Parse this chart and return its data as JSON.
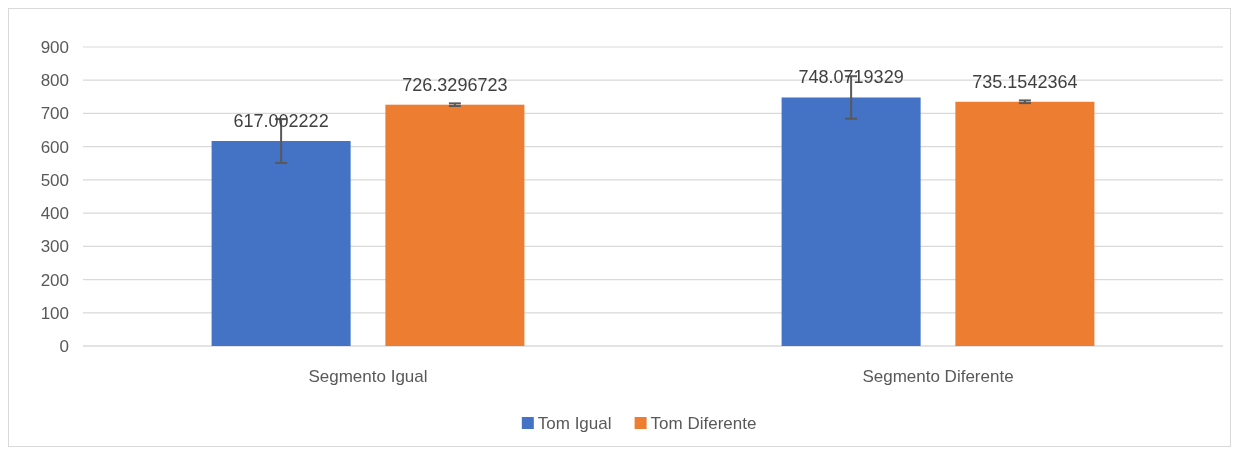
{
  "chart_data": {
    "type": "bar",
    "categories": [
      "Segmento Igual",
      "Segmento Diferente"
    ],
    "series": [
      {
        "name": "Tom Igual",
        "color": "#4472c4",
        "values": [
          617.002222,
          748.0719329
        ],
        "errors": [
          66,
          64
        ]
      },
      {
        "name": "Tom Diferente",
        "color": "#ed7d31",
        "values": [
          726.3296723,
          735.1542364
        ],
        "errors": [
          4,
          4
        ]
      }
    ],
    "ylim": [
      0,
      900
    ],
    "yticks": [
      0,
      100,
      200,
      300,
      400,
      500,
      600,
      700,
      800,
      900
    ],
    "grid": "y",
    "legend": "bottom",
    "data_labels": true
  }
}
